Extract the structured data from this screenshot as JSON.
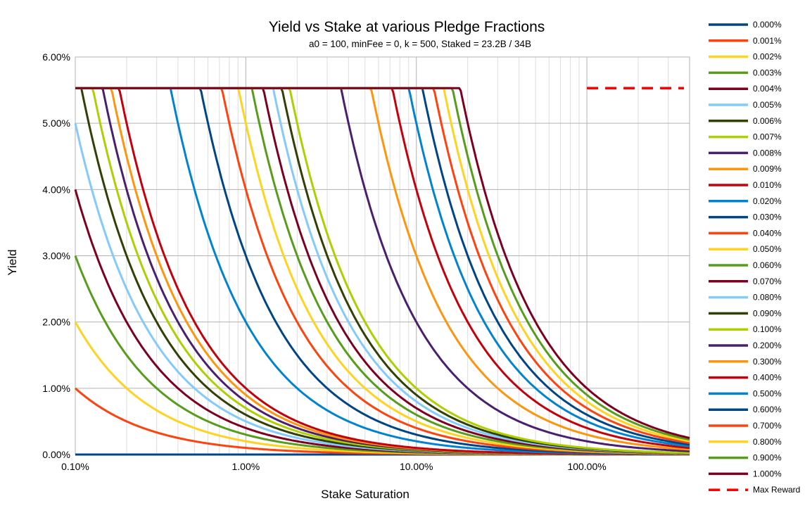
{
  "chart_data": {
    "type": "line",
    "title": "Yield vs Stake at various Pledge Fractions",
    "subtitle": "a0 = 100, minFee = 0, k = 500, Staked = 23.2B / 34B",
    "xlabel": "Stake Saturation",
    "ylabel": "Yield",
    "x_scale": "log",
    "xlim": [
      0.001,
      4.0
    ],
    "ylim": [
      0,
      0.06
    ],
    "x_ticks": [
      {
        "value": 0.001,
        "label": "0.10%"
      },
      {
        "value": 0.01,
        "label": "1.00%"
      },
      {
        "value": 0.1,
        "label": "10.00%"
      },
      {
        "value": 1.0,
        "label": "100.00%"
      }
    ],
    "y_ticks": [
      {
        "value": 0.0,
        "label": "0.00%"
      },
      {
        "value": 0.01,
        "label": "1.00%"
      },
      {
        "value": 0.02,
        "label": "2.00%"
      },
      {
        "value": 0.03,
        "label": "3.00%"
      },
      {
        "value": 0.04,
        "label": "4.00%"
      },
      {
        "value": 0.05,
        "label": "5.00%"
      },
      {
        "value": 0.06,
        "label": "6.00%"
      }
    ],
    "grid": true,
    "legend_position": "right",
    "max_yield": 0.0553,
    "series": [
      {
        "name": "0.000%",
        "pledge": 0.0,
        "color": "#004586"
      },
      {
        "name": "0.001%",
        "pledge": 1e-05,
        "color": "#ff420e"
      },
      {
        "name": "0.002%",
        "pledge": 2e-05,
        "color": "#ffd320"
      },
      {
        "name": "0.003%",
        "pledge": 3e-05,
        "color": "#579d1c"
      },
      {
        "name": "0.004%",
        "pledge": 4e-05,
        "color": "#7e0021"
      },
      {
        "name": "0.005%",
        "pledge": 5e-05,
        "color": "#83caff"
      },
      {
        "name": "0.006%",
        "pledge": 6e-05,
        "color": "#314004"
      },
      {
        "name": "0.007%",
        "pledge": 7e-05,
        "color": "#aecf00"
      },
      {
        "name": "0.008%",
        "pledge": 8e-05,
        "color": "#4b1f6f"
      },
      {
        "name": "0.009%",
        "pledge": 9e-05,
        "color": "#ff950e"
      },
      {
        "name": "0.010%",
        "pledge": 0.0001,
        "color": "#c5000b"
      },
      {
        "name": "0.020%",
        "pledge": 0.0002,
        "color": "#0084d1"
      },
      {
        "name": "0.030%",
        "pledge": 0.0003,
        "color": "#004586"
      },
      {
        "name": "0.040%",
        "pledge": 0.0004,
        "color": "#ff420e"
      },
      {
        "name": "0.050%",
        "pledge": 0.0005,
        "color": "#ffd320"
      },
      {
        "name": "0.060%",
        "pledge": 0.0006,
        "color": "#579d1c"
      },
      {
        "name": "0.070%",
        "pledge": 0.0007,
        "color": "#7e0021"
      },
      {
        "name": "0.080%",
        "pledge": 0.0008,
        "color": "#83caff"
      },
      {
        "name": "0.090%",
        "pledge": 0.0009,
        "color": "#314004"
      },
      {
        "name": "0.100%",
        "pledge": 0.001,
        "color": "#aecf00"
      },
      {
        "name": "0.200%",
        "pledge": 0.002,
        "color": "#4b1f6f"
      },
      {
        "name": "0.300%",
        "pledge": 0.003,
        "color": "#ff950e"
      },
      {
        "name": "0.400%",
        "pledge": 0.004,
        "color": "#c5000b"
      },
      {
        "name": "0.500%",
        "pledge": 0.005,
        "color": "#0084d1"
      },
      {
        "name": "0.600%",
        "pledge": 0.006,
        "color": "#004586"
      },
      {
        "name": "0.700%",
        "pledge": 0.007,
        "color": "#ff420e"
      },
      {
        "name": "0.800%",
        "pledge": 0.008,
        "color": "#ffd320"
      },
      {
        "name": "0.900%",
        "pledge": 0.009,
        "color": "#579d1c"
      },
      {
        "name": "1.000%",
        "pledge": 0.01,
        "color": "#7e0021"
      }
    ],
    "reference_line": {
      "name": "Max Reward",
      "color": "#ff0000",
      "style": "dashed",
      "x_start": 1.0,
      "x_end": 4.0,
      "y": 0.0553
    }
  }
}
